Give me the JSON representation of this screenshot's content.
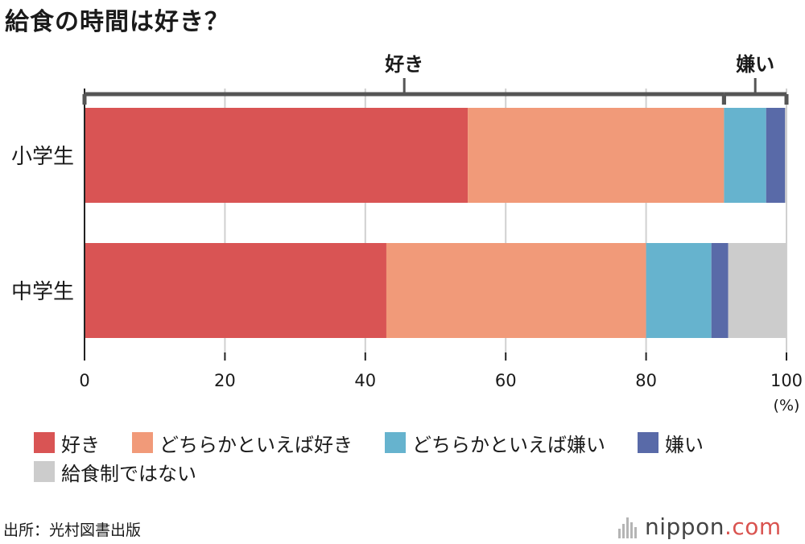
{
  "title": "給食の時間は好き？",
  "chart_data": {
    "type": "bar",
    "orientation": "horizontal",
    "stacked": true,
    "categories": [
      "小学生",
      "中学生"
    ],
    "series": [
      {
        "name": "好き",
        "color": "#d95454",
        "values": [
          54.6,
          43.0
        ]
      },
      {
        "name": "どちらかといえば好き",
        "color": "#f19a79",
        "values": [
          36.5,
          37.0
        ]
      },
      {
        "name": "どちらかといえば嫌い",
        "color": "#66b3ce",
        "values": [
          6.0,
          9.3
        ]
      },
      {
        "name": "嫌い",
        "color": "#596aa8",
        "values": [
          2.7,
          2.4
        ]
      },
      {
        "name": "給食制ではない",
        "color": "#cccccc",
        "values": [
          0.2,
          8.3
        ]
      }
    ],
    "xlim": [
      0,
      100
    ],
    "xticks": [
      0,
      20,
      40,
      60,
      80,
      100
    ],
    "xunit": "(%)",
    "grid": true,
    "brackets": [
      {
        "label": "好き",
        "from": 0,
        "to": 91.1
      },
      {
        "label": "嫌い",
        "from": 91.1,
        "to": 100
      }
    ]
  },
  "legend": [
    {
      "label": "好き",
      "color": "#d95454"
    },
    {
      "label": "どちらかといえば好き",
      "color": "#f19a79"
    },
    {
      "label": "どちらかといえば嫌い",
      "color": "#66b3ce"
    },
    {
      "label": "嫌い",
      "color": "#596aa8"
    },
    {
      "label": "給食制ではない",
      "color": "#cccccc"
    }
  ],
  "source": "出所：光村図書出版",
  "logo": {
    "name": "nippon",
    "suffix": ".com",
    "icon": "nippon-logo-icon"
  }
}
